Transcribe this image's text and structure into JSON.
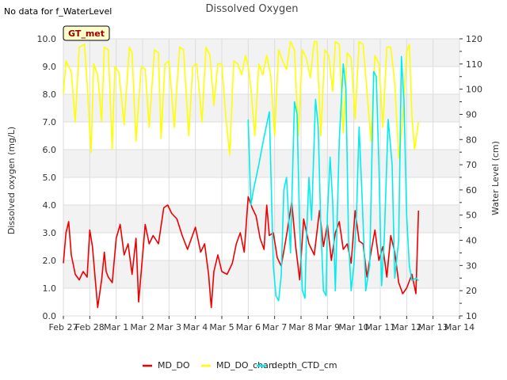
{
  "header": {
    "title": "Dissolved Oxygen",
    "no_data_note": "No data for f_WaterLevel",
    "badge": "GT_met"
  },
  "colors": {
    "band": "#f2f2f2",
    "grid": "#dddddd",
    "MD_DO": "#ee0000",
    "MD_DO_chan": "#ffff00",
    "depth_CTD_cm": "#00eeee",
    "badge_fill": "#ffffcc",
    "badge_text": "#990000"
  },
  "chart_data": {
    "type": "line",
    "title": "Dissolved Oxygen",
    "ylabel": "Dissolved oxygen (mg/L)",
    "y2label": "Water Level (cm)",
    "xlim": [
      0,
      15
    ],
    "ylim": [
      0,
      10
    ],
    "y2lim": [
      10,
      120
    ],
    "x_ticks": [
      0,
      1,
      2,
      3,
      4,
      5,
      6,
      7,
      8,
      9,
      10,
      11,
      12,
      13,
      14,
      15
    ],
    "x_tick_labels": [
      "Feb 27",
      "Feb 28",
      "Mar 1",
      "Mar 2",
      "Mar 3",
      "Mar 4",
      "Mar 5",
      "Mar 6",
      "Mar 7",
      "Mar 8",
      "Mar 9",
      "Mar 10",
      "Mar 11",
      "Mar 12",
      "Mar 13",
      "Mar 14"
    ],
    "y_ticks": [
      0.0,
      1.0,
      2.0,
      3.0,
      4.0,
      5.0,
      6.0,
      7.0,
      8.0,
      9.0,
      10.0
    ],
    "y_tick_labels": [
      "0.0",
      "1.0",
      "2.0",
      "3.0",
      "4.0",
      "5.0",
      "6.0",
      "7.0",
      "8.0",
      "9.0",
      "10.0"
    ],
    "y2_ticks": [
      10,
      20,
      30,
      40,
      50,
      60,
      70,
      80,
      90,
      100,
      110,
      120
    ],
    "y2_tick_labels": [
      "10",
      "20",
      "30",
      "40",
      "50",
      "60",
      "70",
      "80",
      "90",
      "100",
      "110",
      "120"
    ],
    "grid": true,
    "legend_position": "bottom",
    "series": [
      {
        "name": "MD_DO",
        "axis": "left",
        "x": [
          0.0,
          0.1,
          0.2,
          0.3,
          0.45,
          0.6,
          0.75,
          0.9,
          1.0,
          1.1,
          1.3,
          1.45,
          1.55,
          1.62,
          1.7,
          1.85,
          2.0,
          2.15,
          2.3,
          2.45,
          2.6,
          2.75,
          2.85,
          2.95,
          3.1,
          3.25,
          3.4,
          3.6,
          3.8,
          3.95,
          4.1,
          4.3,
          4.5,
          4.7,
          4.85,
          5.0,
          5.2,
          5.35,
          5.5,
          5.6,
          5.7,
          5.85,
          6.0,
          6.2,
          6.4,
          6.55,
          6.7,
          6.85,
          7.0,
          7.15,
          7.3,
          7.45,
          7.6,
          7.7,
          7.8,
          7.95,
          8.1,
          8.25,
          8.45,
          8.65,
          8.8,
          8.95,
          9.1,
          9.3,
          9.5,
          9.7,
          9.85,
          10.0,
          10.15,
          10.3,
          10.45,
          10.6,
          10.75,
          10.9,
          11.05,
          11.2,
          11.35,
          11.5,
          11.65,
          11.8,
          11.95,
          12.1,
          12.25,
          12.4,
          12.55,
          12.7,
          12.85,
          13.0,
          13.2,
          13.35,
          13.45
        ],
        "values": [
          1.9,
          3.0,
          3.4,
          2.2,
          1.5,
          1.3,
          1.6,
          1.4,
          3.1,
          2.5,
          0.3,
          1.3,
          2.3,
          1.6,
          1.4,
          1.2,
          2.8,
          3.3,
          2.2,
          2.6,
          1.5,
          2.8,
          0.5,
          1.6,
          3.3,
          2.6,
          2.9,
          2.6,
          3.9,
          4.0,
          3.7,
          3.5,
          2.9,
          2.4,
          2.8,
          3.2,
          2.3,
          2.6,
          1.5,
          0.3,
          1.6,
          2.2,
          1.6,
          1.5,
          1.9,
          2.6,
          3.0,
          2.3,
          4.3,
          3.9,
          3.6,
          2.8,
          2.4,
          4.0,
          2.9,
          3.0,
          2.1,
          1.8,
          2.9,
          4.1,
          2.5,
          1.3,
          3.5,
          2.6,
          2.2,
          3.8,
          2.5,
          3.3,
          2.0,
          3.0,
          3.4,
          2.4,
          2.6,
          1.9,
          3.8,
          2.7,
          2.6,
          1.4,
          2.3,
          3.1,
          2.0,
          2.5,
          1.4,
          2.9,
          2.3,
          1.2,
          0.8,
          1.0,
          1.5,
          0.8,
          3.8
        ]
      },
      {
        "name": "MD_DO_chan",
        "axis": "left",
        "x": [
          0.0,
          0.1,
          0.3,
          0.45,
          0.6,
          0.8,
          0.9,
          1.05,
          1.15,
          1.3,
          1.45,
          1.55,
          1.7,
          1.85,
          1.95,
          2.1,
          2.3,
          2.5,
          2.6,
          2.75,
          2.95,
          3.1,
          3.25,
          3.45,
          3.6,
          3.7,
          3.85,
          4.0,
          4.2,
          4.4,
          4.55,
          4.75,
          4.9,
          5.05,
          5.25,
          5.4,
          5.55,
          5.7,
          5.85,
          6.0,
          6.15,
          6.3,
          6.45,
          6.6,
          6.75,
          6.9,
          7.0,
          7.1,
          7.25,
          7.4,
          7.55,
          7.7,
          7.85,
          8.0,
          8.15,
          8.3,
          8.45,
          8.6,
          8.75,
          8.9,
          9.05,
          9.2,
          9.35,
          9.5,
          9.6,
          9.75,
          9.9,
          10.05,
          10.2,
          10.3,
          10.45,
          10.6,
          10.75,
          10.9,
          11.05,
          11.2,
          11.35,
          11.5,
          11.65,
          11.8,
          11.95,
          12.1,
          12.25,
          12.4,
          12.55,
          12.7,
          12.85,
          13.0,
          13.1,
          13.2,
          13.3,
          13.45
        ],
        "values": [
          8.0,
          9.2,
          8.8,
          7.0,
          9.7,
          9.8,
          8.4,
          5.9,
          9.1,
          8.7,
          7.0,
          9.7,
          9.6,
          6.0,
          9.0,
          8.8,
          6.9,
          9.7,
          9.5,
          6.3,
          9.0,
          8.9,
          6.8,
          9.6,
          9.5,
          6.4,
          9.1,
          9.2,
          6.8,
          9.7,
          9.6,
          6.5,
          9.0,
          9.1,
          7.0,
          9.7,
          9.4,
          7.6,
          9.1,
          9.1,
          7.2,
          5.8,
          9.2,
          9.1,
          8.7,
          9.4,
          9.0,
          8.2,
          6.5,
          9.1,
          8.7,
          9.4,
          8.7,
          6.5,
          9.6,
          9.2,
          8.9,
          9.9,
          9.6,
          6.5,
          9.6,
          9.3,
          8.6,
          9.9,
          9.9,
          6.5,
          9.6,
          9.4,
          8.1,
          9.9,
          9.8,
          6.6,
          9.5,
          9.3,
          7.1,
          9.9,
          9.8,
          8.1,
          6.3,
          9.4,
          9.1,
          6.8,
          9.7,
          9.7,
          8.4,
          5.7,
          7.0,
          9.5,
          9.8,
          7.2,
          6.0,
          7.0
        ]
      },
      {
        "name": "depth_CTD_cm",
        "axis": "right",
        "x": [
          7.0,
          7.1,
          7.2,
          7.4,
          7.6,
          7.8,
          7.95,
          8.05,
          8.15,
          8.25,
          8.35,
          8.45,
          8.6,
          8.75,
          8.85,
          8.95,
          9.05,
          9.15,
          9.2,
          9.3,
          9.4,
          9.55,
          9.65,
          9.75,
          9.85,
          9.95,
          10.0,
          10.1,
          10.2,
          10.3,
          10.45,
          10.6,
          10.7,
          10.8,
          10.9,
          11.0,
          11.1,
          11.2,
          11.3,
          11.45,
          11.6,
          11.75,
          11.85,
          11.95,
          12.05,
          12.15,
          12.3,
          12.45,
          12.55,
          12.7,
          12.8,
          12.9,
          13.0,
          13.1,
          13.2,
          13.35,
          13.45
        ],
        "values": [
          88.0,
          54.0,
          60.0,
          70.0,
          81.0,
          91.0,
          30.0,
          18.0,
          16.0,
          26.0,
          60.0,
          65.0,
          35.0,
          95.0,
          90.0,
          45.0,
          20.0,
          17.0,
          40.0,
          65.0,
          48.0,
          96.0,
          85.0,
          45.0,
          20.0,
          18.0,
          50.0,
          73.0,
          55.0,
          20.0,
          80.0,
          110.0,
          100.0,
          40.0,
          20.0,
          30.0,
          50.0,
          85.0,
          60.0,
          20.0,
          30.0,
          107.0,
          105.0,
          70.0,
          22.0,
          40.0,
          88.0,
          70.0,
          25.0,
          40.0,
          113.0,
          95.0,
          50.0,
          30.0,
          24.0,
          25.0,
          24.0
        ]
      }
    ]
  }
}
